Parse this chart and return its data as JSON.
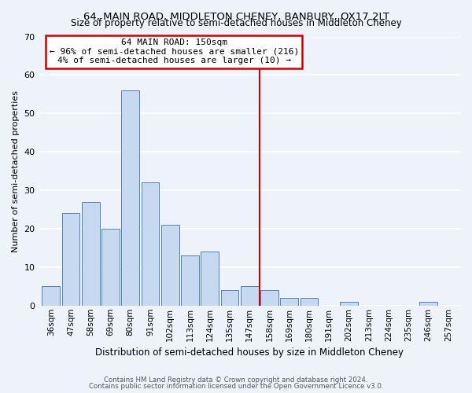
{
  "title": "64, MAIN ROAD, MIDDLETON CHENEY, BANBURY, OX17 2LT",
  "subtitle": "Size of property relative to semi-detached houses in Middleton Cheney",
  "bar_labels": [
    "36sqm",
    "47sqm",
    "58sqm",
    "69sqm",
    "80sqm",
    "91sqm",
    "102sqm",
    "113sqm",
    "124sqm",
    "135sqm",
    "147sqm",
    "158sqm",
    "169sqm",
    "180sqm",
    "191sqm",
    "202sqm",
    "213sqm",
    "224sqm",
    "235sqm",
    "246sqm",
    "257sqm"
  ],
  "bar_values": [
    5,
    24,
    27,
    20,
    56,
    32,
    21,
    13,
    14,
    4,
    5,
    4,
    2,
    2,
    0,
    1,
    0,
    0,
    0,
    1,
    0
  ],
  "bar_color": "#c6d9f0",
  "bar_edge_color": "#4f81bd",
  "ylabel": "Number of semi-detached properties",
  "xlabel": "Distribution of semi-detached houses by size in Middleton Cheney",
  "ylim": [
    0,
    70
  ],
  "yticks": [
    0,
    10,
    20,
    30,
    40,
    50,
    60,
    70
  ],
  "vline_x": 10.5,
  "vline_color": "#cc0000",
  "annotation_title": "64 MAIN ROAD: 150sqm",
  "annotation_line1": "← 96% of semi-detached houses are smaller (216)",
  "annotation_line2": "4% of semi-detached houses are larger (10) →",
  "annotation_box_color": "#ffffff",
  "annotation_box_edge": "#cc0000",
  "footer1": "Contains HM Land Registry data © Crown copyright and database right 2024.",
  "footer2": "Contains public sector information licensed under the Open Government Licence v3.0.",
  "background_color": "#eef2fb",
  "grid_color": "#ffffff"
}
